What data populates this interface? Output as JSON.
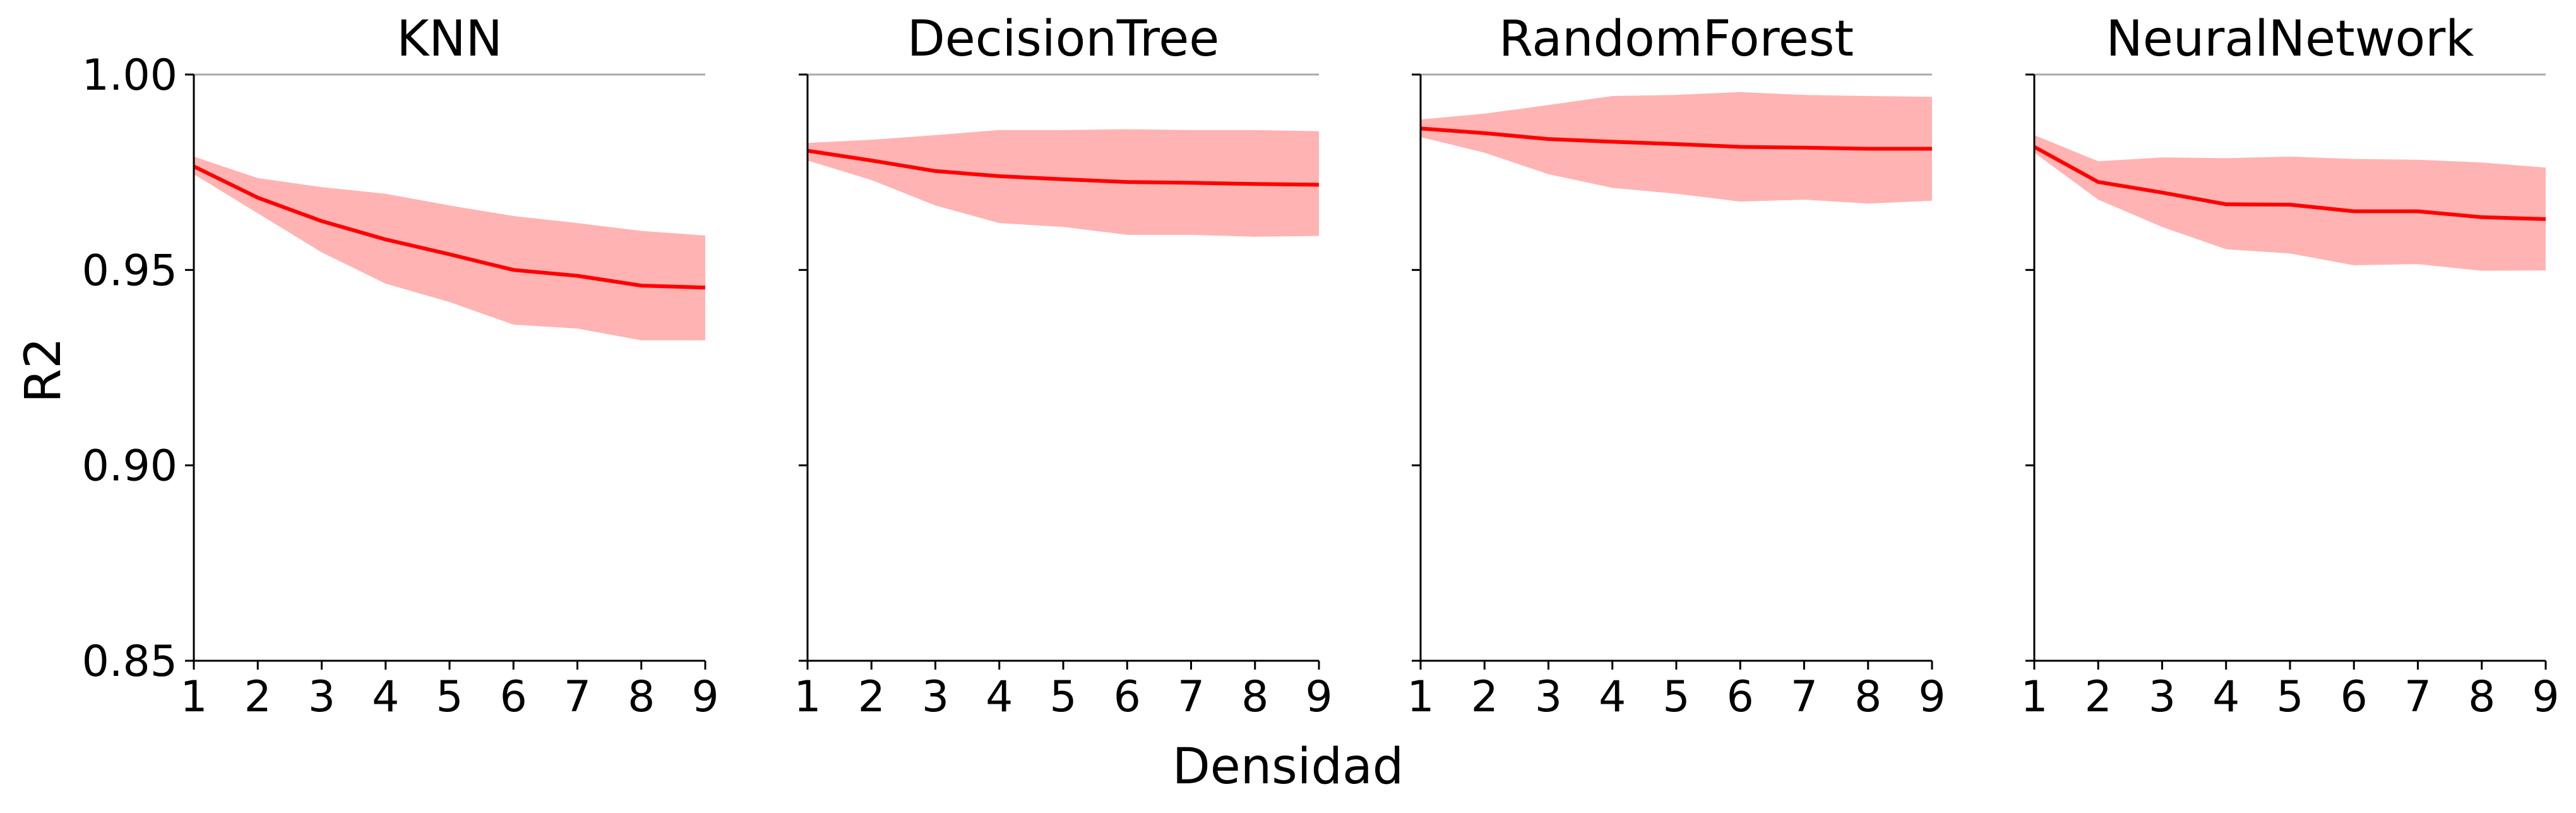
{
  "colors": {
    "line": "#ff0000",
    "band": "#ffb3b3",
    "axis": "#000000",
    "gridtop": "#aaaaaa"
  },
  "chart_data": {
    "type": "line",
    "xlabel": "Densidad",
    "ylabel": "R2",
    "shared_y": true,
    "xlim": [
      1,
      9
    ],
    "ylim": [
      0.85,
      1.0
    ],
    "xticks": [
      "1",
      "2",
      "3",
      "4",
      "5",
      "6",
      "7",
      "8",
      "9"
    ],
    "yticks": [
      "0.85",
      "0.90",
      "0.95",
      "1.00"
    ],
    "grid": false,
    "panels": [
      {
        "title": "KNN",
        "x": [
          1,
          2,
          3,
          4,
          5,
          6,
          7,
          8,
          9
        ],
        "mean": [
          0.9765,
          0.9685,
          0.9625,
          0.9578,
          0.954,
          0.95,
          0.9485,
          0.946,
          0.9455
        ],
        "lower": [
          0.9745,
          0.9645,
          0.9545,
          0.9465,
          0.9418,
          0.936,
          0.935,
          0.932,
          0.932
        ],
        "upper": [
          0.979,
          0.9735,
          0.9712,
          0.9695,
          0.9665,
          0.9638,
          0.962,
          0.96,
          0.9588
        ]
      },
      {
        "title": "DecisionTree",
        "x": [
          1,
          2,
          3,
          4,
          5,
          6,
          7,
          8,
          9
        ],
        "mean": [
          0.9805,
          0.978,
          0.9753,
          0.974,
          0.9732,
          0.9725,
          0.9723,
          0.972,
          0.9718
        ],
        "lower": [
          0.978,
          0.973,
          0.9665,
          0.962,
          0.961,
          0.959,
          0.959,
          0.9585,
          0.9587
        ],
        "upper": [
          0.9825,
          0.9833,
          0.9845,
          0.9858,
          0.9858,
          0.986,
          0.9858,
          0.9858,
          0.9855
        ]
      },
      {
        "title": "RandomForest",
        "x": [
          1,
          2,
          3,
          4,
          5,
          6,
          7,
          8,
          9
        ],
        "mean": [
          0.9862,
          0.985,
          0.9835,
          0.9828,
          0.9822,
          0.9815,
          0.9813,
          0.981,
          0.981
        ],
        "lower": [
          0.984,
          0.98,
          0.9745,
          0.971,
          0.9695,
          0.9675,
          0.968,
          0.967,
          0.9677
        ],
        "upper": [
          0.9885,
          0.99,
          0.9922,
          0.9945,
          0.9948,
          0.9955,
          0.9948,
          0.9945,
          0.9943
        ]
      },
      {
        "title": "NeuralNetwork",
        "x": [
          1,
          2,
          3,
          4,
          5,
          6,
          7,
          8,
          9
        ],
        "mean": [
          0.9815,
          0.9725,
          0.9698,
          0.9668,
          0.9667,
          0.965,
          0.965,
          0.9635,
          0.963
        ],
        "lower": [
          0.98,
          0.968,
          0.961,
          0.9553,
          0.9542,
          0.9512,
          0.9515,
          0.9498,
          0.9499
        ],
        "upper": [
          0.9845,
          0.9778,
          0.9788,
          0.9786,
          0.979,
          0.9784,
          0.9782,
          0.9775,
          0.9762
        ]
      }
    ]
  }
}
